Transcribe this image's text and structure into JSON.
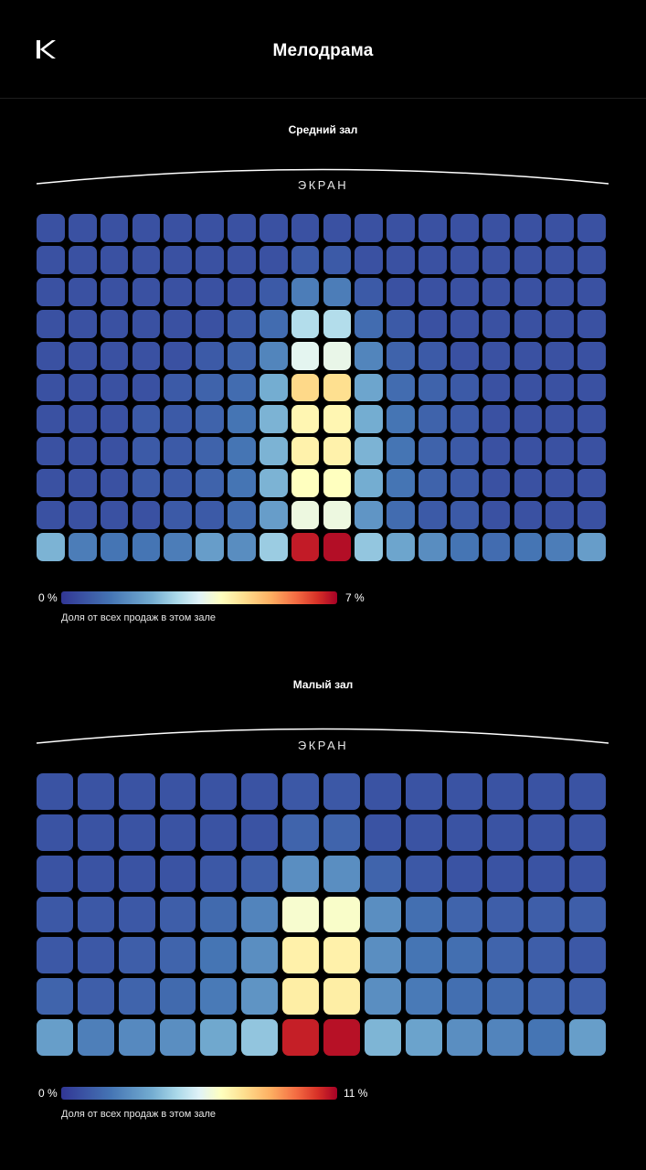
{
  "header": {
    "title": "Мелодрама",
    "logo_icon": "kinopoisk-k-logo-icon"
  },
  "chart_data": [
    {
      "type": "heatmap",
      "title": "Средний зал",
      "screen_label": "ЭКРАН",
      "rows": 11,
      "cols": 18,
      "value_unit": "%",
      "scale": {
        "min": 0,
        "max": 7,
        "min_label": "0 %",
        "max_label": "7 %"
      },
      "legend_caption": "Доля от всех продаж в этом зале",
      "colormap": [
        "#313695",
        "#4575b4",
        "#74add1",
        "#abd9e9",
        "#e0f3f8",
        "#ffffbf",
        "#fee090",
        "#fdae61",
        "#f46d43",
        "#d73027",
        "#a50026"
      ],
      "values": [
        [
          0.3,
          0.3,
          0.3,
          0.3,
          0.3,
          0.3,
          0.3,
          0.3,
          0.3,
          0.3,
          0.3,
          0.3,
          0.3,
          0.3,
          0.3,
          0.3,
          0.3,
          0.3
        ],
        [
          0.3,
          0.3,
          0.3,
          0.3,
          0.3,
          0.3,
          0.3,
          0.3,
          0.4,
          0.4,
          0.3,
          0.3,
          0.3,
          0.3,
          0.3,
          0.3,
          0.3,
          0.3
        ],
        [
          0.3,
          0.3,
          0.3,
          0.3,
          0.3,
          0.3,
          0.3,
          0.4,
          0.8,
          0.8,
          0.4,
          0.3,
          0.3,
          0.3,
          0.3,
          0.3,
          0.3,
          0.3
        ],
        [
          0.3,
          0.3,
          0.3,
          0.3,
          0.3,
          0.3,
          0.4,
          0.6,
          2.2,
          2.2,
          0.6,
          0.4,
          0.3,
          0.3,
          0.3,
          0.3,
          0.3,
          0.3
        ],
        [
          0.3,
          0.3,
          0.3,
          0.3,
          0.3,
          0.4,
          0.5,
          0.9,
          2.9,
          3.0,
          0.9,
          0.5,
          0.4,
          0.3,
          0.3,
          0.3,
          0.3,
          0.3
        ],
        [
          0.3,
          0.3,
          0.3,
          0.3,
          0.4,
          0.5,
          0.6,
          1.4,
          4.3,
          4.2,
          1.3,
          0.6,
          0.5,
          0.4,
          0.3,
          0.3,
          0.3,
          0.3
        ],
        [
          0.3,
          0.3,
          0.3,
          0.4,
          0.4,
          0.5,
          0.7,
          1.5,
          3.7,
          3.7,
          1.4,
          0.7,
          0.5,
          0.4,
          0.3,
          0.3,
          0.3,
          0.3
        ],
        [
          0.3,
          0.3,
          0.3,
          0.4,
          0.4,
          0.5,
          0.7,
          1.5,
          3.8,
          3.8,
          1.5,
          0.7,
          0.5,
          0.4,
          0.3,
          0.3,
          0.3,
          0.3
        ],
        [
          0.3,
          0.3,
          0.3,
          0.4,
          0.4,
          0.5,
          0.7,
          1.5,
          3.5,
          3.5,
          1.4,
          0.7,
          0.5,
          0.4,
          0.3,
          0.3,
          0.3,
          0.3
        ],
        [
          0.3,
          0.3,
          0.3,
          0.3,
          0.4,
          0.4,
          0.6,
          1.2,
          3.1,
          3.1,
          1.1,
          0.6,
          0.4,
          0.4,
          0.3,
          0.3,
          0.3,
          0.3
        ],
        [
          1.5,
          0.8,
          0.7,
          0.7,
          0.8,
          1.2,
          1.0,
          1.9,
          6.6,
          6.8,
          1.8,
          1.3,
          1.0,
          0.7,
          0.6,
          0.7,
          0.8,
          1.2
        ]
      ]
    },
    {
      "type": "heatmap",
      "title": "Малый зал",
      "screen_label": "ЭКРАН",
      "rows": 7,
      "cols": 14,
      "value_unit": "%",
      "scale": {
        "min": 0,
        "max": 11,
        "min_label": "0 %",
        "max_label": "11 %"
      },
      "legend_caption": "Доля от всех продаж в этом зале",
      "colormap": [
        "#313695",
        "#4575b4",
        "#74add1",
        "#abd9e9",
        "#e0f3f8",
        "#ffffbf",
        "#fee090",
        "#fdae61",
        "#f46d43",
        "#d73027",
        "#a50026"
      ],
      "values": [
        [
          0.5,
          0.5,
          0.5,
          0.5,
          0.5,
          0.5,
          0.6,
          0.6,
          0.5,
          0.5,
          0.5,
          0.5,
          0.5,
          0.5
        ],
        [
          0.5,
          0.5,
          0.5,
          0.5,
          0.5,
          0.5,
          0.8,
          0.8,
          0.5,
          0.5,
          0.5,
          0.5,
          0.5,
          0.5
        ],
        [
          0.5,
          0.5,
          0.5,
          0.5,
          0.6,
          0.7,
          1.6,
          1.6,
          0.8,
          0.6,
          0.5,
          0.5,
          0.5,
          0.5
        ],
        [
          0.6,
          0.6,
          0.6,
          0.7,
          0.9,
          1.4,
          5.2,
          5.3,
          1.6,
          1.0,
          0.8,
          0.7,
          0.7,
          0.7
        ],
        [
          0.6,
          0.6,
          0.7,
          0.8,
          1.1,
          1.6,
          6.0,
          6.0,
          1.6,
          1.1,
          1.0,
          0.8,
          0.7,
          0.6
        ],
        [
          0.8,
          0.7,
          0.8,
          0.9,
          1.2,
          1.7,
          6.1,
          6.1,
          1.6,
          1.2,
          1.0,
          0.9,
          0.8,
          0.7
        ],
        [
          1.9,
          1.3,
          1.5,
          1.6,
          2.1,
          2.8,
          10.3,
          10.6,
          2.4,
          2.0,
          1.6,
          1.4,
          1.1,
          1.9
        ]
      ]
    }
  ]
}
